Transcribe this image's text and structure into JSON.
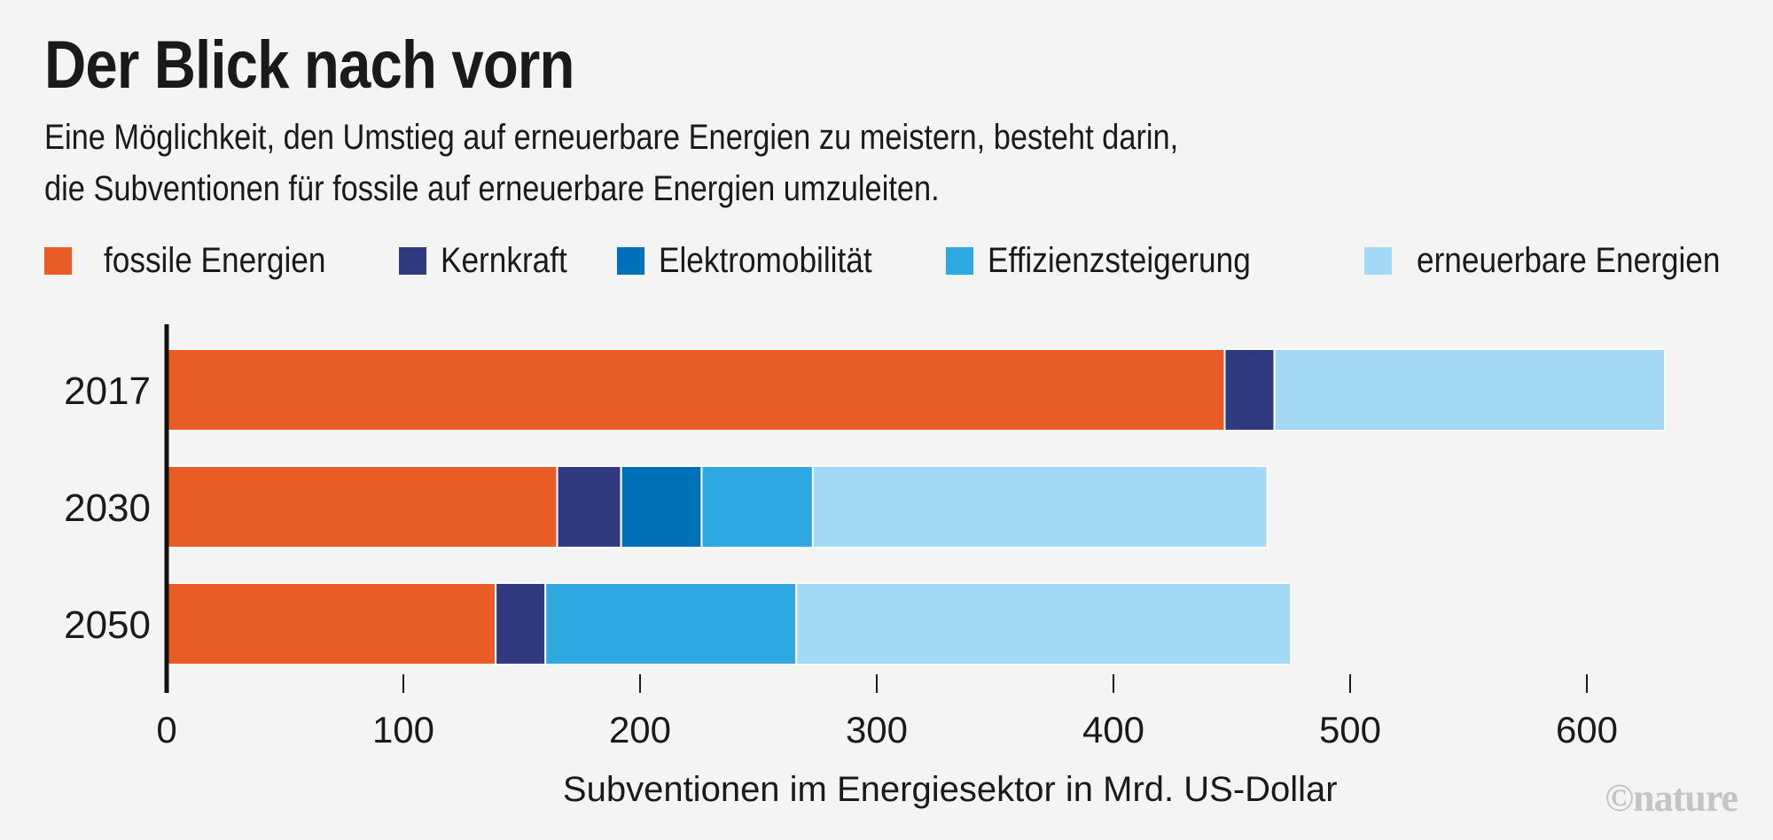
{
  "header": {
    "title": "Der Blick nach vorn",
    "subtitle_line1": "Eine Möglichkeit, den Umstieg auf erneuerbare Energien zu meistern, besteht darin,",
    "subtitle_line2": "die Subventionen für fossile auf erneuerbare Energien umzuleiten."
  },
  "credit": "©nature",
  "chart_data": {
    "type": "bar",
    "orientation": "horizontal",
    "stacked": true,
    "categories": [
      "2017",
      "2030",
      "2050"
    ],
    "series": [
      {
        "name": "fossile Energien",
        "color": "#e95c26",
        "values": [
          447,
          165,
          139
        ]
      },
      {
        "name": "Kernkraft",
        "color": "#2f3a80",
        "values": [
          21,
          27,
          21
        ]
      },
      {
        "name": "Elektromobilität",
        "color": "#0070b8",
        "values": [
          0,
          34,
          0
        ]
      },
      {
        "name": "Effizienzsteigerung",
        "color": "#2ea8e0",
        "values": [
          0,
          47,
          106
        ]
      },
      {
        "name": "erneuerbare Energien",
        "color": "#a3d9f5",
        "values": [
          165,
          192,
          209
        ]
      }
    ],
    "xlabel": "Subventionen im Energiesektor in Mrd. US-Dollar",
    "ylabel": "",
    "xlim": [
      0,
      640
    ],
    "xticks": [
      0,
      100,
      200,
      300,
      400,
      500,
      600
    ],
    "grid": false,
    "legend": "top"
  }
}
